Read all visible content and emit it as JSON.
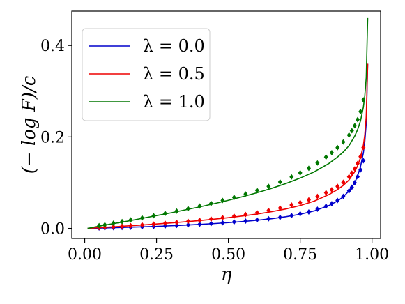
{
  "chart_data": {
    "type": "line",
    "xlabel": "η",
    "ylabel": "(− log F)/c",
    "xlim": [
      -0.045,
      1.03
    ],
    "ylim": [
      -0.022,
      0.475
    ],
    "xticks": [
      0.0,
      0.25,
      0.5,
      0.75,
      1.0
    ],
    "xtick_labels": [
      "0.00",
      "0.25",
      "0.50",
      "0.75",
      "1.00"
    ],
    "yticks": [
      0.0,
      0.2,
      0.4
    ],
    "ytick_labels": [
      "0.0",
      "0.2",
      "0.4"
    ],
    "grid": false,
    "legend_position": "top-left",
    "series": [
      {
        "name": "λ = 0.0",
        "color": "#0000cc",
        "x": [
          0.01,
          0.05,
          0.1,
          0.15,
          0.2,
          0.25,
          0.3,
          0.35,
          0.4,
          0.45,
          0.5,
          0.55,
          0.6,
          0.65,
          0.7,
          0.75,
          0.8,
          0.85,
          0.88,
          0.9,
          0.92,
          0.94,
          0.95,
          0.96,
          0.97,
          0.975,
          0.98,
          0.985
        ],
        "y": [
          0.0,
          0.0007,
          0.0015,
          0.0025,
          0.0035,
          0.0045,
          0.0058,
          0.0072,
          0.0088,
          0.0106,
          0.0127,
          0.015,
          0.0178,
          0.0212,
          0.0255,
          0.031,
          0.0385,
          0.05,
          0.06,
          0.069,
          0.082,
          0.1,
          0.115,
          0.135,
          0.165,
          0.19,
          0.23,
          0.36
        ],
        "points_x": [
          0.05,
          0.07,
          0.1,
          0.13,
          0.16,
          0.2,
          0.24,
          0.28,
          0.32,
          0.36,
          0.4,
          0.44,
          0.48,
          0.52,
          0.56,
          0.6,
          0.64,
          0.68,
          0.72,
          0.75,
          0.78,
          0.81,
          0.84,
          0.86,
          0.88,
          0.9,
          0.92,
          0.93,
          0.94,
          0.95,
          0.96,
          0.97
        ],
        "points_y": [
          0.0008,
          0.001,
          0.0016,
          0.002,
          0.0026,
          0.0035,
          0.0043,
          0.0053,
          0.0065,
          0.0077,
          0.009,
          0.0106,
          0.0123,
          0.0142,
          0.0162,
          0.0185,
          0.021,
          0.0242,
          0.0282,
          0.032,
          0.036,
          0.042,
          0.0485,
          0.054,
          0.061,
          0.07,
          0.082,
          0.09,
          0.1,
          0.113,
          0.128,
          0.148
        ]
      },
      {
        "name": "λ = 0.5",
        "color": "#ee0000",
        "x": [
          0.01,
          0.05,
          0.1,
          0.15,
          0.2,
          0.25,
          0.3,
          0.35,
          0.4,
          0.45,
          0.5,
          0.55,
          0.6,
          0.65,
          0.7,
          0.75,
          0.8,
          0.85,
          0.88,
          0.9,
          0.92,
          0.94,
          0.95,
          0.96,
          0.97,
          0.975,
          0.98,
          0.985
        ],
        "y": [
          0.0,
          0.0018,
          0.0035,
          0.0055,
          0.0075,
          0.0097,
          0.012,
          0.0145,
          0.0172,
          0.0202,
          0.0235,
          0.0272,
          0.0315,
          0.0365,
          0.0425,
          0.05,
          0.06,
          0.074,
          0.085,
          0.094,
          0.106,
          0.124,
          0.137,
          0.155,
          0.182,
          0.205,
          0.245,
          0.36
        ],
        "points_x": [
          0.05,
          0.07,
          0.1,
          0.13,
          0.16,
          0.2,
          0.24,
          0.28,
          0.32,
          0.36,
          0.4,
          0.44,
          0.48,
          0.52,
          0.56,
          0.6,
          0.64,
          0.68,
          0.72,
          0.75,
          0.78,
          0.81,
          0.84,
          0.86,
          0.88,
          0.9,
          0.92,
          0.93,
          0.94,
          0.95,
          0.96,
          0.97
        ],
        "points_y": [
          0.0018,
          0.0026,
          0.0035,
          0.0048,
          0.006,
          0.0077,
          0.0094,
          0.0113,
          0.0133,
          0.0155,
          0.0178,
          0.0205,
          0.0235,
          0.0268,
          0.0304,
          0.0345,
          0.0392,
          0.0445,
          0.0512,
          0.0565,
          0.0625,
          0.07,
          0.078,
          0.0845,
          0.092,
          0.101,
          0.113,
          0.121,
          0.13,
          0.142,
          0.157,
          0.177
        ]
      },
      {
        "name": "λ = 1.0",
        "color": "#007700",
        "x": [
          0.01,
          0.05,
          0.1,
          0.15,
          0.2,
          0.25,
          0.3,
          0.35,
          0.4,
          0.45,
          0.5,
          0.55,
          0.6,
          0.65,
          0.7,
          0.75,
          0.8,
          0.85,
          0.88,
          0.9,
          0.92,
          0.94,
          0.95,
          0.96,
          0.97,
          0.975,
          0.98,
          0.985
        ],
        "y": [
          0.0,
          0.005,
          0.0105,
          0.016,
          0.022,
          0.028,
          0.034,
          0.0405,
          0.047,
          0.054,
          0.0615,
          0.0695,
          0.078,
          0.0875,
          0.098,
          0.11,
          0.124,
          0.142,
          0.156,
          0.167,
          0.181,
          0.202,
          0.216,
          0.235,
          0.265,
          0.29,
          0.33,
          0.46
        ],
        "points_x": [
          0.05,
          0.07,
          0.1,
          0.13,
          0.16,
          0.2,
          0.24,
          0.28,
          0.32,
          0.36,
          0.4,
          0.44,
          0.48,
          0.52,
          0.56,
          0.6,
          0.64,
          0.68,
          0.72,
          0.75,
          0.78,
          0.81,
          0.84,
          0.86,
          0.88,
          0.9,
          0.92,
          0.93,
          0.94,
          0.95,
          0.96,
          0.97
        ],
        "points_y": [
          0.006,
          0.008,
          0.0115,
          0.015,
          0.0185,
          0.023,
          0.0278,
          0.0327,
          0.0378,
          0.0432,
          0.0488,
          0.0547,
          0.0611,
          0.0678,
          0.0752,
          0.0832,
          0.092,
          0.1015,
          0.1125,
          0.1215,
          0.1315,
          0.143,
          0.156,
          0.1655,
          0.1765,
          0.189,
          0.204,
          0.2135,
          0.2245,
          0.238,
          0.2555,
          0.281
        ]
      }
    ]
  }
}
